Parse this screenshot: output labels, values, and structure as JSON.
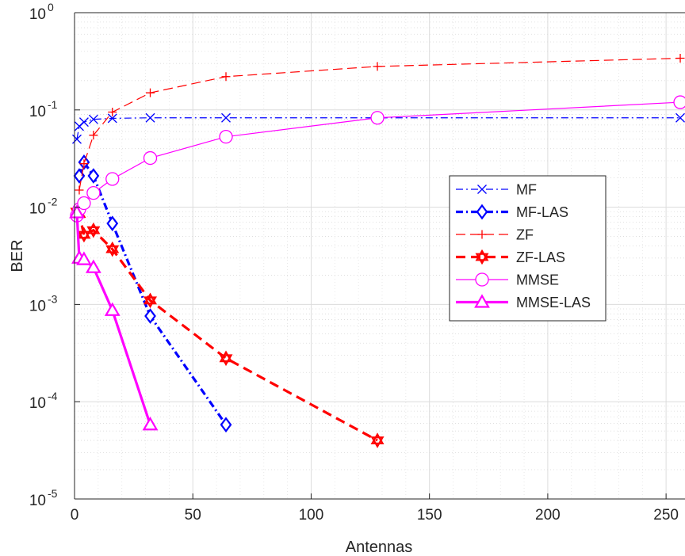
{
  "chart_data": {
    "type": "line",
    "title": "",
    "xlabel": "Antennas",
    "ylabel": "BER",
    "xlim": [
      0,
      258
    ],
    "ylim_log10": [
      -5,
      0
    ],
    "yscale": "log",
    "grid": true,
    "minor_grid": true,
    "legend_placement": "center-right",
    "x_ticks": [
      {
        "value": 0,
        "label": "0"
      },
      {
        "value": 50,
        "label": "50"
      },
      {
        "value": 100,
        "label": "100"
      },
      {
        "value": 150,
        "label": "150"
      },
      {
        "value": 200,
        "label": "200"
      },
      {
        "value": 250,
        "label": "250"
      }
    ],
    "y_ticks": [
      {
        "value": 1e-05,
        "base": "10",
        "exp": "-5"
      },
      {
        "value": 0.0001,
        "base": "10",
        "exp": "-4"
      },
      {
        "value": 0.001,
        "base": "10",
        "exp": "-3"
      },
      {
        "value": 0.01,
        "base": "10",
        "exp": "-2"
      },
      {
        "value": 0.1,
        "base": "10",
        "exp": "-1"
      },
      {
        "value": 1,
        "base": "10",
        "exp": "0"
      }
    ],
    "series": [
      {
        "name": "MF",
        "color": "#0000ff",
        "dash": "9,4,2,4",
        "width": 1.2,
        "marker": "x",
        "x": [
          1,
          2,
          4,
          8,
          16,
          32,
          64,
          256
        ],
        "y": [
          0.05,
          0.068,
          0.075,
          0.08,
          0.082,
          0.083,
          0.083,
          0.083
        ]
      },
      {
        "name": "MF-LAS",
        "color": "#0000ff",
        "dash": "9,4,2,4",
        "width": 3.2,
        "marker": "diamond",
        "x": [
          2,
          4,
          8,
          16,
          32,
          64
        ],
        "y": [
          0.021,
          0.029,
          0.021,
          0.0068,
          0.00076,
          5.8e-05
        ]
      },
      {
        "name": "ZF",
        "color": "#ff0000",
        "dash": "12,6",
        "width": 1.2,
        "marker": "plus",
        "x": [
          2,
          4,
          8,
          16,
          32,
          64,
          128,
          256
        ],
        "y": [
          0.015,
          0.028,
          0.055,
          0.095,
          0.15,
          0.22,
          0.28,
          0.34
        ]
      },
      {
        "name": "ZF-LAS",
        "color": "#ff0000",
        "dash": "12,7",
        "width": 3.2,
        "marker": "hexagram",
        "x": [
          1,
          2,
          4,
          8,
          16,
          32,
          64,
          128
        ],
        "y": [
          0.009,
          0.0085,
          0.0052,
          0.0058,
          0.0037,
          0.0011,
          0.00028,
          4e-05
        ]
      },
      {
        "name": "MMSE",
        "color": "#ff00ff",
        "dash": "",
        "width": 1.2,
        "marker": "circle",
        "x": [
          1,
          2,
          4,
          8,
          16,
          32,
          64,
          128,
          256
        ],
        "y": [
          0.0082,
          0.0095,
          0.011,
          0.014,
          0.0195,
          0.032,
          0.053,
          0.083,
          0.12
        ]
      },
      {
        "name": "MMSE-LAS",
        "color": "#ff00ff",
        "dash": "",
        "width": 3.2,
        "marker": "triangle",
        "x": [
          1,
          2,
          4,
          8,
          16,
          32
        ],
        "y": [
          0.0088,
          0.003,
          0.0029,
          0.0024,
          0.00087,
          5.8e-05
        ]
      }
    ]
  }
}
